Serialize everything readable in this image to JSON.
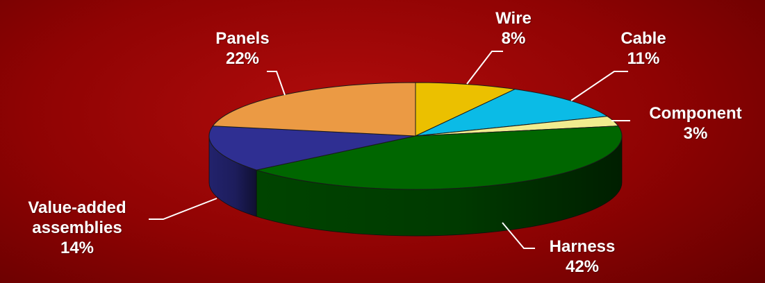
{
  "chart_data": {
    "type": "pie",
    "style": "3d",
    "slices": [
      {
        "label": "Wire",
        "value": 8,
        "percent_label": "8%",
        "color": "#ebc000",
        "side": "#a88900"
      },
      {
        "label": "Cable",
        "value": 11,
        "percent_label": "11%",
        "color": "#0bbbe6",
        "side": "#0886a6"
      },
      {
        "label": "Component",
        "value": 3,
        "percent_label": "3%",
        "color": "#f1ec8f",
        "side": "#b5b060"
      },
      {
        "label": "Harness",
        "value": 42,
        "percent_label": "42%",
        "color": "#006600",
        "side": "#004400"
      },
      {
        "label": "Value-added assemblies",
        "label_lines": [
          "Value-added",
          "assemblies"
        ],
        "value": 14,
        "percent_label": "14%",
        "color": "#2f2f92",
        "side": "#22226c"
      },
      {
        "label": "Panels",
        "value": 22,
        "percent_label": "22%",
        "color": "#eb9a44",
        "side": "#b0722f"
      }
    ],
    "legend": "none",
    "leader_line_color": "#ffffff"
  }
}
